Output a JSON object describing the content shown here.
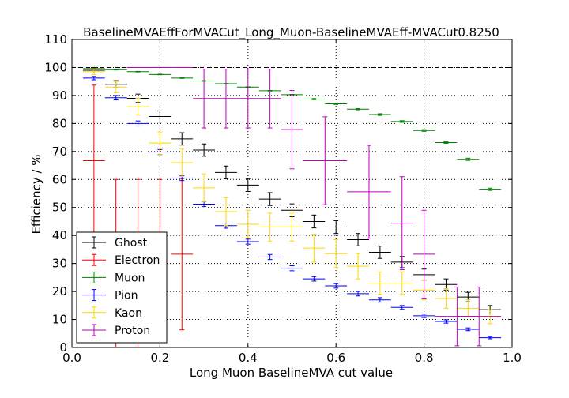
{
  "chart_data": {
    "type": "scatter",
    "title": "BaselineMVAEffForMVACut_Long_Muon-BaselineMVAEff-MVACut0.8250",
    "xlabel": "Long Muon BaselineMVA cut value",
    "ylabel": "Efficiency / %",
    "xlim": [
      0.0,
      1.0
    ],
    "ylim": [
      0,
      110
    ],
    "x_ticks": [
      "0.0",
      "0.2",
      "0.4",
      "0.6",
      "0.8",
      "1.0"
    ],
    "y_ticks": [
      "0",
      "10",
      "20",
      "30",
      "40",
      "50",
      "60",
      "70",
      "80",
      "90",
      "100",
      "110"
    ],
    "grid": true,
    "reference_line": 100,
    "legend_position": "lower-left",
    "series": [
      {
        "name": "Ghost",
        "color": "#000000",
        "points": [
          {
            "x": 0.05,
            "y": 99.0,
            "xerr": 0.025,
            "yerr": 1.0
          },
          {
            "x": 0.1,
            "y": 94.0,
            "xerr": 0.025,
            "yerr": 1.3
          },
          {
            "x": 0.15,
            "y": 89.0,
            "xerr": 0.025,
            "yerr": 1.5
          },
          {
            "x": 0.2,
            "y": 82.5,
            "xerr": 0.025,
            "yerr": 2.0
          },
          {
            "x": 0.25,
            "y": 74.5,
            "xerr": 0.025,
            "yerr": 2.2
          },
          {
            "x": 0.3,
            "y": 70.5,
            "xerr": 0.025,
            "yerr": 2.2
          },
          {
            "x": 0.35,
            "y": 62.5,
            "xerr": 0.025,
            "yerr": 2.3
          },
          {
            "x": 0.4,
            "y": 58.0,
            "xerr": 0.025,
            "yerr": 2.3
          },
          {
            "x": 0.45,
            "y": 53.0,
            "xerr": 0.025,
            "yerr": 2.3
          },
          {
            "x": 0.5,
            "y": 49.0,
            "xerr": 0.025,
            "yerr": 2.3
          },
          {
            "x": 0.55,
            "y": 45.0,
            "xerr": 0.025,
            "yerr": 2.3
          },
          {
            "x": 0.6,
            "y": 43.0,
            "xerr": 0.025,
            "yerr": 2.3
          },
          {
            "x": 0.65,
            "y": 38.5,
            "xerr": 0.025,
            "yerr": 2.2
          },
          {
            "x": 0.7,
            "y": 34.0,
            "xerr": 0.025,
            "yerr": 2.2
          },
          {
            "x": 0.75,
            "y": 30.5,
            "xerr": 0.025,
            "yerr": 2.0
          },
          {
            "x": 0.8,
            "y": 26.0,
            "xerr": 0.025,
            "yerr": 2.0
          },
          {
            "x": 0.85,
            "y": 22.5,
            "xerr": 0.025,
            "yerr": 2.0
          },
          {
            "x": 0.9,
            "y": 18.0,
            "xerr": 0.025,
            "yerr": 1.7
          },
          {
            "x": 0.95,
            "y": 13.5,
            "xerr": 0.025,
            "yerr": 1.5
          }
        ]
      },
      {
        "name": "Electron",
        "color": "#ff0000",
        "points": [
          {
            "x": 0.05,
            "y": 66.7,
            "xerr": 0.025,
            "yerr": 27.0
          },
          {
            "x": 0.1,
            "y": 0.0,
            "xerr": 0.025,
            "yerr_low": 0.0,
            "yerr_high": 60.0
          },
          {
            "x": 0.15,
            "y": 0.0,
            "xerr": 0.025,
            "yerr_low": 0.0,
            "yerr_high": 60.0
          },
          {
            "x": 0.2,
            "y": 0.0,
            "xerr": 0.025,
            "yerr_low": 0.0,
            "yerr_high": 60.0
          },
          {
            "x": 0.25,
            "y": 33.3,
            "xerr": 0.025,
            "yerr": 27.0
          }
        ]
      },
      {
        "name": "Muon",
        "color": "#008000",
        "points": [
          {
            "x": 0.05,
            "y": 99.6,
            "xerr": 0.025,
            "yerr": 0.1
          },
          {
            "x": 0.1,
            "y": 99.2,
            "xerr": 0.025,
            "yerr": 0.1
          },
          {
            "x": 0.15,
            "y": 98.5,
            "xerr": 0.025,
            "yerr": 0.1
          },
          {
            "x": 0.2,
            "y": 97.5,
            "xerr": 0.025,
            "yerr": 0.1
          },
          {
            "x": 0.25,
            "y": 96.2,
            "xerr": 0.025,
            "yerr": 0.1
          },
          {
            "x": 0.3,
            "y": 95.2,
            "xerr": 0.025,
            "yerr": 0.1
          },
          {
            "x": 0.35,
            "y": 94.2,
            "xerr": 0.025,
            "yerr": 0.1
          },
          {
            "x": 0.4,
            "y": 93.0,
            "xerr": 0.025,
            "yerr": 0.1
          },
          {
            "x": 0.45,
            "y": 91.7,
            "xerr": 0.025,
            "yerr": 0.1
          },
          {
            "x": 0.5,
            "y": 90.3,
            "xerr": 0.025,
            "yerr": 0.1
          },
          {
            "x": 0.55,
            "y": 88.7,
            "xerr": 0.025,
            "yerr": 0.2
          },
          {
            "x": 0.6,
            "y": 87.0,
            "xerr": 0.025,
            "yerr": 0.2
          },
          {
            "x": 0.65,
            "y": 85.1,
            "xerr": 0.025,
            "yerr": 0.2
          },
          {
            "x": 0.7,
            "y": 83.2,
            "xerr": 0.025,
            "yerr": 0.3
          },
          {
            "x": 0.75,
            "y": 80.7,
            "xerr": 0.025,
            "yerr": 0.3
          },
          {
            "x": 0.8,
            "y": 77.5,
            "xerr": 0.025,
            "yerr": 0.3
          },
          {
            "x": 0.85,
            "y": 73.2,
            "xerr": 0.025,
            "yerr": 0.3
          },
          {
            "x": 0.9,
            "y": 67.2,
            "xerr": 0.025,
            "yerr": 0.4
          },
          {
            "x": 0.95,
            "y": 56.5,
            "xerr": 0.025,
            "yerr": 0.4
          }
        ]
      },
      {
        "name": "Pion",
        "color": "#0000ff",
        "points": [
          {
            "x": 0.05,
            "y": 96.2,
            "xerr": 0.025,
            "yerr": 0.6
          },
          {
            "x": 0.1,
            "y": 89.2,
            "xerr": 0.025,
            "yerr": 0.8
          },
          {
            "x": 0.15,
            "y": 80.0,
            "xerr": 0.025,
            "yerr": 0.9
          },
          {
            "x": 0.2,
            "y": 69.8,
            "xerr": 0.025,
            "yerr": 0.9
          },
          {
            "x": 0.25,
            "y": 60.5,
            "xerr": 0.025,
            "yerr": 0.9
          },
          {
            "x": 0.3,
            "y": 51.2,
            "xerr": 0.025,
            "yerr": 0.9
          },
          {
            "x": 0.35,
            "y": 43.5,
            "xerr": 0.025,
            "yerr": 0.9
          },
          {
            "x": 0.4,
            "y": 37.8,
            "xerr": 0.025,
            "yerr": 0.9
          },
          {
            "x": 0.45,
            "y": 32.3,
            "xerr": 0.025,
            "yerr": 0.9
          },
          {
            "x": 0.5,
            "y": 28.3,
            "xerr": 0.025,
            "yerr": 0.9
          },
          {
            "x": 0.55,
            "y": 24.5,
            "xerr": 0.025,
            "yerr": 0.8
          },
          {
            "x": 0.6,
            "y": 22.0,
            "xerr": 0.025,
            "yerr": 0.8
          },
          {
            "x": 0.65,
            "y": 19.2,
            "xerr": 0.025,
            "yerr": 0.8
          },
          {
            "x": 0.7,
            "y": 17.0,
            "xerr": 0.025,
            "yerr": 0.8
          },
          {
            "x": 0.75,
            "y": 14.3,
            "xerr": 0.025,
            "yerr": 0.7
          },
          {
            "x": 0.8,
            "y": 11.3,
            "xerr": 0.025,
            "yerr": 0.6
          },
          {
            "x": 0.85,
            "y": 9.3,
            "xerr": 0.025,
            "yerr": 0.6
          },
          {
            "x": 0.9,
            "y": 6.5,
            "xerr": 0.025,
            "yerr": 0.5
          },
          {
            "x": 0.95,
            "y": 3.5,
            "xerr": 0.025,
            "yerr": 0.4
          }
        ]
      },
      {
        "name": "Kaon",
        "color": "#ffd700",
        "points": [
          {
            "x": 0.05,
            "y": 98.5,
            "xerr": 0.025,
            "yerr": 1.0
          },
          {
            "x": 0.1,
            "y": 93.0,
            "xerr": 0.025,
            "yerr": 2.0
          },
          {
            "x": 0.15,
            "y": 86.0,
            "xerr": 0.025,
            "yerr": 3.0
          },
          {
            "x": 0.2,
            "y": 73.0,
            "xerr": 0.025,
            "yerr": 4.0
          },
          {
            "x": 0.25,
            "y": 66.0,
            "xerr": 0.025,
            "yerr": 5.0
          },
          {
            "x": 0.3,
            "y": 57.0,
            "xerr": 0.025,
            "yerr": 5.0
          },
          {
            "x": 0.35,
            "y": 48.5,
            "xerr": 0.025,
            "yerr": 5.0
          },
          {
            "x": 0.4,
            "y": 44.0,
            "xerr": 0.025,
            "yerr": 5.0
          },
          {
            "x": 0.45,
            "y": 43.0,
            "xerr": 0.025,
            "yerr": 5.0
          },
          {
            "x": 0.5,
            "y": 43.0,
            "xerr": 0.025,
            "yerr": 5.0
          },
          {
            "x": 0.55,
            "y": 35.5,
            "xerr": 0.025,
            "yerr": 5.0
          },
          {
            "x": 0.6,
            "y": 33.5,
            "xerr": 0.025,
            "yerr": 5.0
          },
          {
            "x": 0.65,
            "y": 29.0,
            "xerr": 0.025,
            "yerr": 4.5
          },
          {
            "x": 0.7,
            "y": 23.0,
            "xerr": 0.025,
            "yerr": 4.0
          },
          {
            "x": 0.75,
            "y": 23.0,
            "xerr": 0.025,
            "yerr": 4.0
          },
          {
            "x": 0.8,
            "y": 20.5,
            "xerr": 0.025,
            "yerr": 3.5
          },
          {
            "x": 0.85,
            "y": 17.5,
            "xerr": 0.025,
            "yerr": 3.5
          },
          {
            "x": 0.9,
            "y": 14.0,
            "xerr": 0.025,
            "yerr": 3.0
          },
          {
            "x": 0.95,
            "y": 11.0,
            "xerr": 0.025,
            "yerr": 2.5
          }
        ]
      },
      {
        "name": "Proton",
        "color": "#bf00bf",
        "points": [
          {
            "x": 0.15,
            "y": 100.0,
            "xerr": 0.025,
            "yerr_low": 0.0,
            "yerr_high": 0.0
          },
          {
            "x": 0.2,
            "y": 100.0,
            "xerr": 0.025,
            "yerr_low": 0.0,
            "yerr_high": 0.0
          },
          {
            "x": 0.25,
            "y": 100.0,
            "xerr": 0.025,
            "yerr_low": 0.0,
            "yerr_high": 0.0
          },
          {
            "x": 0.3,
            "y": 88.9,
            "xerr": 0.025,
            "yerr": 10.5
          },
          {
            "x": 0.35,
            "y": 88.9,
            "xerr": 0.025,
            "yerr": 10.5
          },
          {
            "x": 0.4,
            "y": 88.9,
            "xerr": 0.025,
            "yerr": 10.5
          },
          {
            "x": 0.45,
            "y": 88.9,
            "xerr": 0.025,
            "yerr": 10.5
          },
          {
            "x": 0.5,
            "y": 77.8,
            "xerr": 0.025,
            "yerr": 14.0
          },
          {
            "x": 0.575,
            "y": 66.7,
            "xerr": 0.05,
            "yerr": 15.7
          },
          {
            "x": 0.675,
            "y": 55.6,
            "xerr": 0.05,
            "yerr": 16.6
          },
          {
            "x": 0.75,
            "y": 44.4,
            "xerr": 0.025,
            "yerr": 16.6
          },
          {
            "x": 0.8,
            "y": 33.3,
            "xerr": 0.025,
            "yerr": 15.7
          },
          {
            "x": 0.875,
            "y": 11.1,
            "xerr": 0.05,
            "yerr_low": 10.5,
            "yerr_high": 10.5
          },
          {
            "x": 0.925,
            "y": 11.1,
            "xerr": 0.05,
            "yerr_low": 10.5,
            "yerr_high": 10.5
          }
        ]
      }
    ]
  }
}
